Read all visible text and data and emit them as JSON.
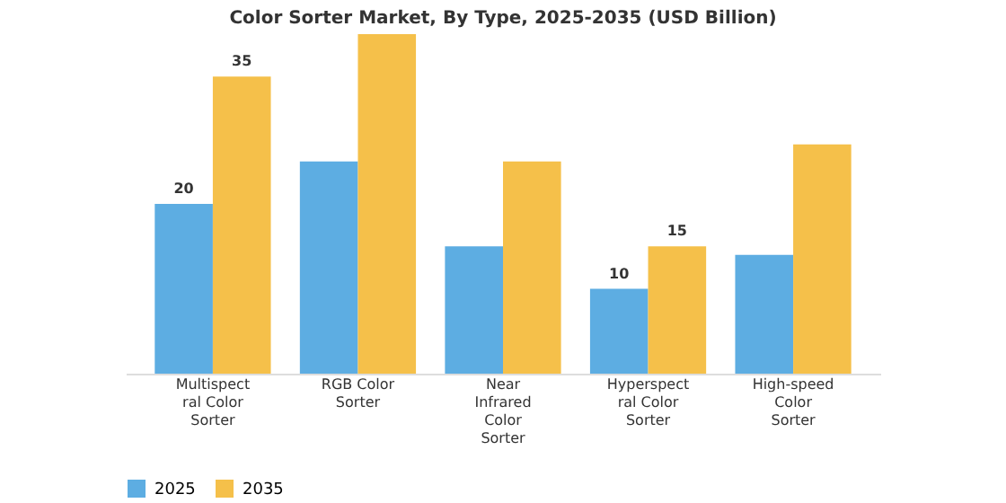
{
  "chart_data": {
    "type": "bar",
    "title": "Color Sorter Market, By Type, 2025-2035 (USD Billion)",
    "categories": [
      "Multispectral Color Sorter",
      "RGB Color Sorter",
      "Near Infrared Color Sorter",
      "Hyperspectral Color Sorter",
      "High-speed Color Sorter"
    ],
    "series": [
      {
        "name": "2025",
        "color": "#5dade2",
        "values": [
          20,
          25,
          15,
          10,
          14
        ],
        "value_labels": [
          "20",
          null,
          null,
          "10",
          null
        ]
      },
      {
        "name": "2035",
        "color": "#f5c04a",
        "values": [
          35,
          40,
          25,
          15,
          27
        ],
        "value_labels": [
          "35",
          null,
          null,
          "15",
          null
        ]
      }
    ],
    "legend": "bottom",
    "grid": false
  }
}
